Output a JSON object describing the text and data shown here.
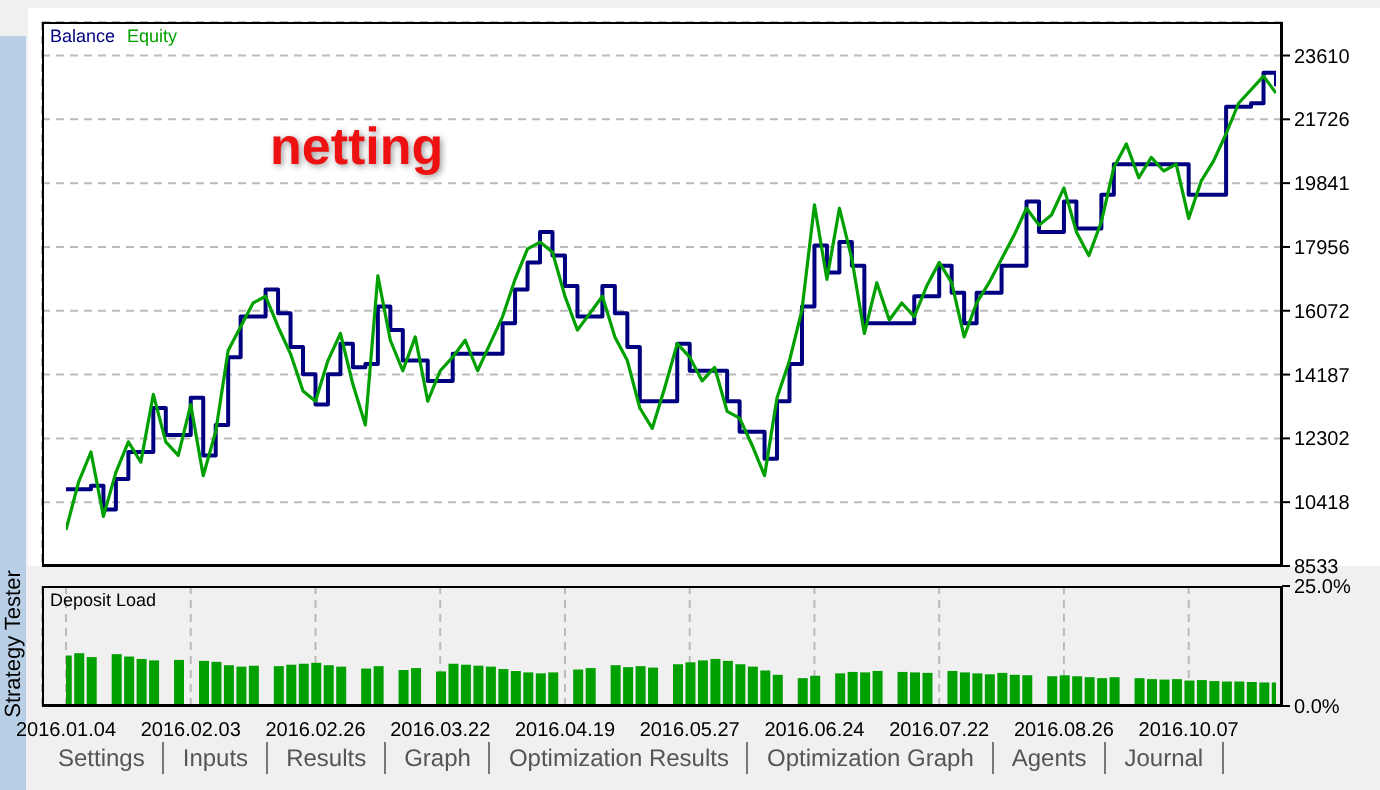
{
  "chart_data": [
    {
      "type": "line",
      "legend": "top left",
      "grid": true,
      "tick_labels": "y",
      "categories": [
        "2016.01.04",
        null,
        null,
        null,
        null,
        null,
        null,
        null,
        null,
        null,
        "2016.02.03",
        null,
        null,
        null,
        null,
        null,
        null,
        null,
        null,
        null,
        "2016.02.26",
        null,
        null,
        null,
        null,
        null,
        null,
        null,
        null,
        null,
        "2016.03.22",
        null,
        null,
        null,
        null,
        null,
        null,
        null,
        null,
        null,
        "2016.04.19",
        null,
        null,
        null,
        null,
        null,
        null,
        null,
        null,
        null,
        "2016.05.27",
        null,
        null,
        null,
        null,
        null,
        null,
        null,
        null,
        null,
        "2016.06.24",
        null,
        null,
        null,
        null,
        null,
        null,
        null,
        null,
        null,
        "2016.07.22",
        null,
        null,
        null,
        null,
        null,
        null,
        null,
        null,
        null,
        "2016.08.26",
        null,
        null,
        null,
        null,
        null,
        null,
        null,
        null,
        null,
        "2016.10.07",
        null,
        null,
        null,
        null,
        null,
        null,
        null
      ],
      "ylim": [
        8533,
        24600
      ],
      "yticks": [
        8533,
        10418,
        12302,
        14187,
        16072,
        17956,
        19841,
        21726,
        23610
      ],
      "series": [
        {
          "name": "Balance",
          "type": "step",
          "color": "#000080",
          "values": [
            10800,
            10800,
            10900,
            10200,
            11100,
            11900,
            11900,
            13200,
            12400,
            12400,
            13500,
            11800,
            12700,
            14700,
            15900,
            15900,
            16700,
            16000,
            15000,
            14200,
            13300,
            14200,
            15100,
            14400,
            14500,
            16200,
            15500,
            14600,
            14600,
            14000,
            14000,
            14800,
            14800,
            14800,
            14800,
            15700,
            16700,
            17500,
            18400,
            17700,
            16800,
            15900,
            15900,
            16800,
            16000,
            15000,
            13400,
            13400,
            13400,
            15100,
            14300,
            14300,
            14300,
            13400,
            12500,
            12500,
            11700,
            13400,
            14500,
            16200,
            18000,
            17200,
            18100,
            17400,
            15700,
            15700,
            15700,
            15700,
            16500,
            16500,
            17400,
            16600,
            15700,
            16600,
            16600,
            17400,
            17400,
            19300,
            18400,
            18400,
            19300,
            18500,
            18500,
            19500,
            20400,
            20400,
            20400,
            20400,
            20400,
            20400,
            19500,
            19500,
            19500,
            22100,
            22100,
            22200,
            23100,
            22700
          ]
        },
        {
          "name": "Equity",
          "type": "line",
          "color": "#00a000",
          "values": [
            9600,
            11000,
            11900,
            10000,
            11300,
            12200,
            11600,
            13600,
            12200,
            11800,
            13300,
            11200,
            12500,
            14900,
            15600,
            16300,
            16500,
            15600,
            14800,
            13700,
            13400,
            14600,
            15400,
            13900,
            12700,
            17100,
            15200,
            14300,
            15300,
            13400,
            14300,
            14700,
            15200,
            14300,
            15100,
            15900,
            17000,
            17900,
            18100,
            17800,
            16500,
            15500,
            16000,
            16500,
            15300,
            14600,
            13200,
            12600,
            13800,
            15100,
            14700,
            14000,
            14400,
            13100,
            12900,
            12100,
            11200,
            13500,
            14600,
            16100,
            19200,
            17000,
            19100,
            17600,
            15400,
            16900,
            15800,
            16300,
            15900,
            16800,
            17500,
            16900,
            15300,
            16300,
            16900,
            17600,
            18300,
            19100,
            18600,
            18900,
            19700,
            18400,
            17700,
            18700,
            20300,
            21000,
            20000,
            20600,
            20200,
            20400,
            18800,
            19900,
            20500,
            21300,
            22200,
            22600,
            23000,
            22500
          ]
        }
      ],
      "annotations": [
        "netting"
      ]
    },
    {
      "type": "bar",
      "title": "Deposit Load",
      "grid": "x",
      "categories": [
        "2016.01.04",
        null,
        null,
        null,
        null,
        null,
        null,
        null,
        null,
        null,
        "2016.02.03",
        null,
        null,
        null,
        null,
        null,
        null,
        null,
        null,
        null,
        "2016.02.26",
        null,
        null,
        null,
        null,
        null,
        null,
        null,
        null,
        null,
        "2016.03.22",
        null,
        null,
        null,
        null,
        null,
        null,
        null,
        null,
        null,
        "2016.04.19",
        null,
        null,
        null,
        null,
        null,
        null,
        null,
        null,
        null,
        "2016.05.27",
        null,
        null,
        null,
        null,
        null,
        null,
        null,
        null,
        null,
        "2016.06.24",
        null,
        null,
        null,
        null,
        null,
        null,
        null,
        null,
        null,
        "2016.07.22",
        null,
        null,
        null,
        null,
        null,
        null,
        null,
        null,
        null,
        "2016.08.26",
        null,
        null,
        null,
        null,
        null,
        null,
        null,
        null,
        null,
        "2016.10.07",
        null,
        null,
        null,
        null,
        null,
        null,
        null
      ],
      "color": "#00a000",
      "ylim": [
        0,
        25
      ],
      "yticks": [
        {
          "value": 0,
          "label": "0.0%"
        },
        {
          "value": 25,
          "label": "25.0%"
        }
      ],
      "values": [
        10.5,
        11,
        10.2,
        null,
        10.8,
        10.3,
        9.8,
        9.5,
        null,
        9.6,
        null,
        9.4,
        9.2,
        8.5,
        8.2,
        8.4,
        null,
        8.3,
        8.6,
        8.8,
        9,
        8.5,
        8.2,
        null,
        7.8,
        8.3,
        null,
        7.5,
        7.9,
        null,
        7.2,
        8.8,
        8.6,
        8.4,
        8.2,
        7.7,
        7.3,
        7,
        6.8,
        7,
        null,
        7.6,
        7.9,
        null,
        8.5,
        8.1,
        8.3,
        8,
        null,
        8.7,
        9.1,
        9.5,
        9.8,
        9.4,
        8.7,
        8.2,
        7.4,
        6.5,
        null,
        5.8,
        6.3,
        null,
        6.8,
        7.1,
        7,
        7.3,
        null,
        7.1,
        7,
        6.9,
        null,
        7.3,
        7,
        6.8,
        6.6,
        6.9,
        6.5,
        6.4,
        null,
        6.2,
        6.4,
        6.2,
        6,
        5.8,
        6,
        null,
        5.8,
        5.6,
        5.5,
        5.6,
        5.3,
        5.4,
        5.2,
        5.1,
        5.1,
        5,
        4.9,
        4.9
      ],
      "annotations": [
        "Strategy Tester",
        "Settings",
        "Inputs",
        "Results",
        "Graph",
        "Optimization Results",
        "Optimization Graph",
        "Agents",
        "Journal"
      ]
    }
  ]
}
